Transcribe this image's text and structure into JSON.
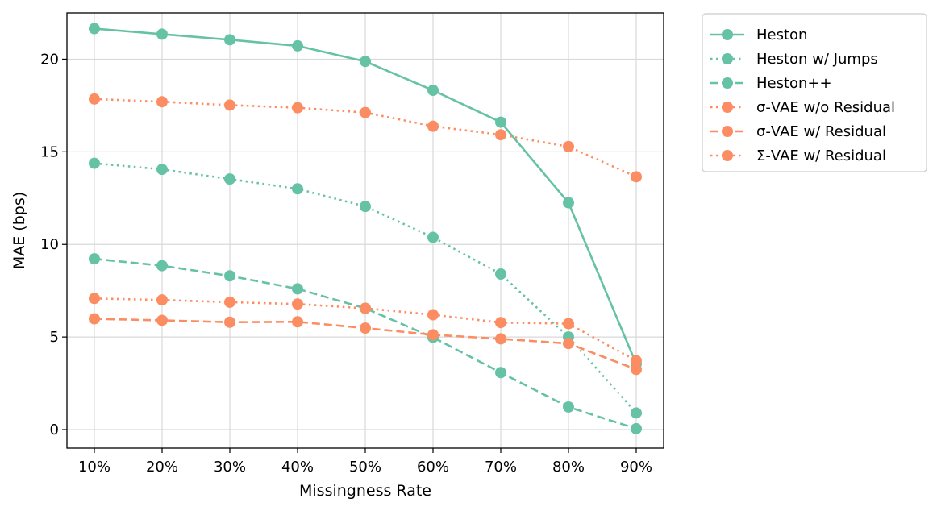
{
  "chart_data": {
    "type": "line",
    "title": "",
    "xlabel": "Missingness Rate",
    "ylabel": "MAE (bps)",
    "categories": [
      "10%",
      "20%",
      "30%",
      "40%",
      "50%",
      "60%",
      "70%",
      "80%",
      "90%"
    ],
    "ylim": [
      -1,
      22.5
    ],
    "yticks": [
      0,
      5,
      10,
      15,
      20
    ],
    "grid": true,
    "legend_position": "outside right",
    "series": [
      {
        "name": "Heston",
        "color": "#66c2a5",
        "dash": "solid",
        "values": [
          21.65,
          21.35,
          21.05,
          20.72,
          19.88,
          18.32,
          16.6,
          12.25,
          3.55
        ]
      },
      {
        "name": "Heston w/ Jumps",
        "color": "#66c2a5",
        "dash": "dotted",
        "values": [
          14.38,
          14.05,
          13.53,
          13.0,
          12.05,
          10.38,
          8.4,
          5.0,
          0.9
        ]
      },
      {
        "name": "Heston++",
        "color": "#66c2a5",
        "dash": "dashed",
        "values": [
          9.22,
          8.85,
          8.3,
          7.6,
          6.55,
          4.98,
          3.08,
          1.22,
          0.05
        ]
      },
      {
        "name": "σ-VAE w/o Residual",
        "color": "#fc8d62",
        "dash": "dotted",
        "values": [
          17.85,
          17.7,
          17.52,
          17.38,
          17.12,
          16.38,
          15.92,
          15.28,
          13.65
        ]
      },
      {
        "name": "σ-VAE w/ Residual",
        "color": "#fc8d62",
        "dash": "dashed",
        "values": [
          5.98,
          5.9,
          5.8,
          5.82,
          5.48,
          5.12,
          4.9,
          4.65,
          3.25
        ]
      },
      {
        "name": "Σ-VAE w/ Residual",
        "color": "#fc8d62",
        "dash": "dotted",
        "values": [
          7.08,
          7.0,
          6.88,
          6.78,
          6.55,
          6.2,
          5.78,
          5.72,
          3.72
        ]
      }
    ]
  }
}
